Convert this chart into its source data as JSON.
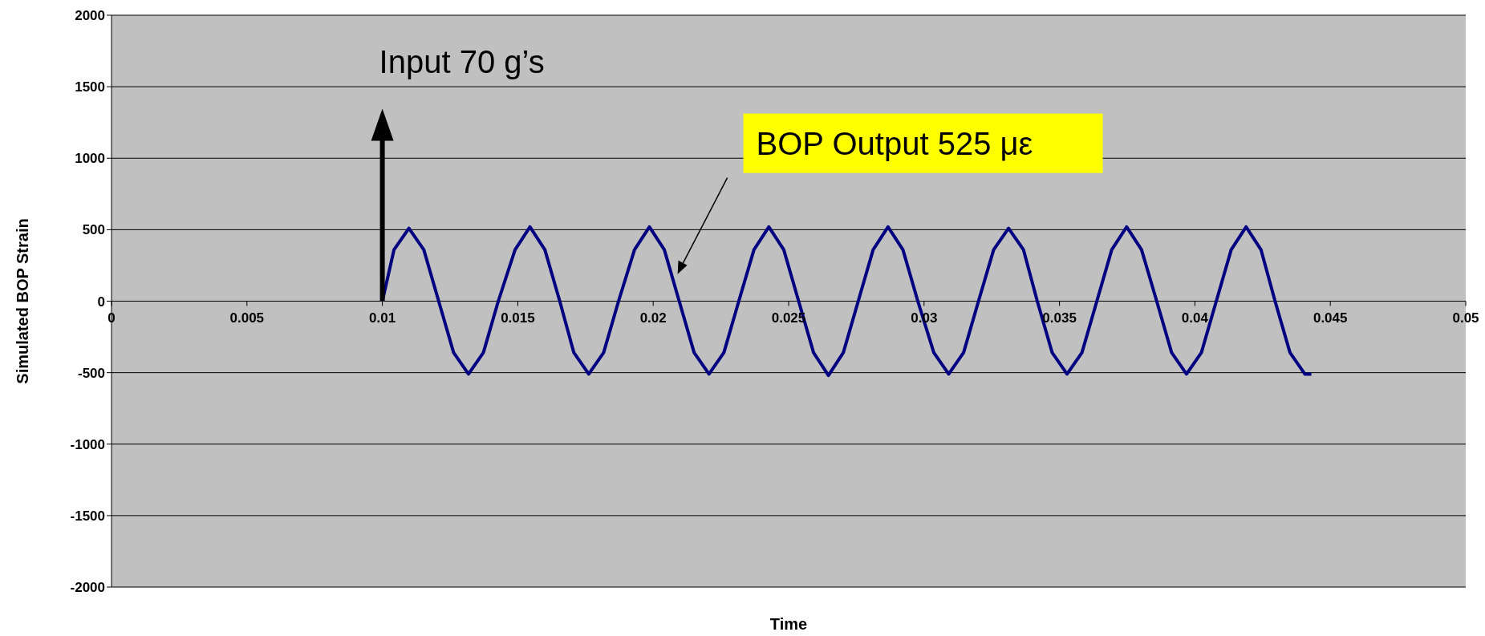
{
  "chart_data": {
    "type": "line",
    "xlabel": "Time",
    "ylabel": "Simulated BOP Strain",
    "xlim": [
      0,
      0.05
    ],
    "xticks": [
      0,
      0.005,
      0.01,
      0.015,
      0.02,
      0.025,
      0.03,
      0.035,
      0.04,
      0.045,
      0.05
    ],
    "ylim": [
      -2000,
      2000
    ],
    "yticks": [
      -2000,
      -1500,
      -1000,
      -500,
      0,
      500,
      1000,
      1500,
      2000
    ],
    "grid": "y",
    "marker": "none",
    "line_style": "solid",
    "annotations": [
      "Input 70 g’s",
      "BOP Output 525 με"
    ],
    "series": [
      {
        "color": "#000080",
        "x": [
          0.01,
          0.01043,
          0.01098,
          0.01153,
          0.01208,
          0.01263,
          0.01318,
          0.01373,
          0.01428,
          0.0149,
          0.01545,
          0.016,
          0.01655,
          0.01707,
          0.01762,
          0.01817,
          0.01872,
          0.01931,
          0.01986,
          0.02041,
          0.02096,
          0.02151,
          0.02206,
          0.02261,
          0.02316,
          0.02372,
          0.02427,
          0.02482,
          0.02537,
          0.02592,
          0.02647,
          0.02702,
          0.02757,
          0.02812,
          0.02867,
          0.02922,
          0.02977,
          0.03036,
          0.03091,
          0.03146,
          0.03201,
          0.03257,
          0.03312,
          0.03367,
          0.03418,
          0.03473,
          0.03528,
          0.03583,
          0.03638,
          0.03693,
          0.03748,
          0.03803,
          0.03859,
          0.03914,
          0.03969,
          0.04024,
          0.04079,
          0.04134,
          0.04189,
          0.04244,
          0.04296,
          0.04351,
          0.04406,
          0.0443
        ],
        "values": [
          0,
          360,
          510,
          360,
          0,
          -360,
          -510,
          -360,
          0,
          360,
          520,
          360,
          0,
          -360,
          -510,
          -360,
          0,
          360,
          520,
          360,
          0,
          -360,
          -510,
          -360,
          0,
          360,
          520,
          360,
          0,
          -360,
          -520,
          -360,
          0,
          360,
          520,
          360,
          0,
          -360,
          -510,
          -360,
          0,
          360,
          510,
          360,
          0,
          -360,
          -510,
          -360,
          0,
          360,
          520,
          360,
          0,
          -360,
          -510,
          -360,
          0,
          360,
          520,
          360,
          0,
          -360,
          -510,
          -510
        ]
      }
    ]
  }
}
